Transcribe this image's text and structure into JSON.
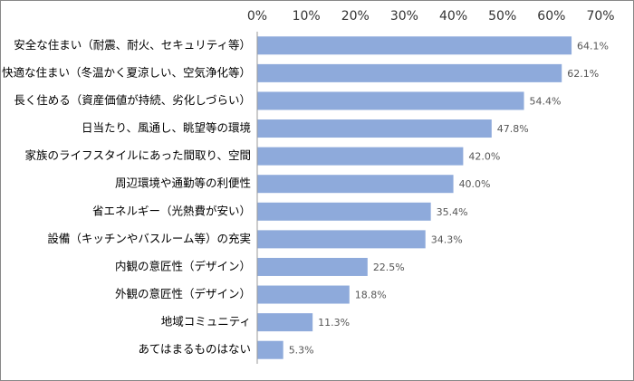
{
  "chart_data": {
    "type": "bar",
    "orientation": "horizontal",
    "categories": [
      "安全な住まい（耐震、耐火、セキュリティ等）",
      "快適な住まい（冬温かく夏涼しい、空気浄化等）",
      "長く住める（資産価値が持続、劣化しづらい）",
      "日当たり、風通し、眺望等の環境",
      "家族のライフスタイルにあった間取り、空間",
      "周辺環境や通勤等の利便性",
      "省エネルギー（光熱費が安い）",
      "設備（キッチンやバスルーム等）の充実",
      "内観の意匠性（デザイン）",
      "外観の意匠性（デザイン）",
      "地域コミュニティ",
      "あてはまるものはない"
    ],
    "values": [
      64.1,
      62.1,
      54.4,
      47.8,
      42.0,
      40.0,
      35.4,
      34.3,
      22.5,
      18.8,
      11.3,
      5.3
    ],
    "value_labels": [
      "64.1%",
      "62.1%",
      "54.4%",
      "47.8%",
      "42.0%",
      "40.0%",
      "35.4%",
      "34.3%",
      "22.5%",
      "18.8%",
      "11.3%",
      "5.3%"
    ],
    "color": "#8eaadb",
    "xlim": [
      0,
      70
    ],
    "xticks": [
      {
        "value": 0,
        "label": "0%"
      },
      {
        "value": 10,
        "label": "10%"
      },
      {
        "value": 20,
        "label": "20%"
      },
      {
        "value": 30,
        "label": "30%"
      },
      {
        "value": 40,
        "label": "40%"
      },
      {
        "value": 50,
        "label": "50%"
      },
      {
        "value": 60,
        "label": "60%"
      },
      {
        "value": 70,
        "label": "70%"
      }
    ],
    "grid": false
  }
}
